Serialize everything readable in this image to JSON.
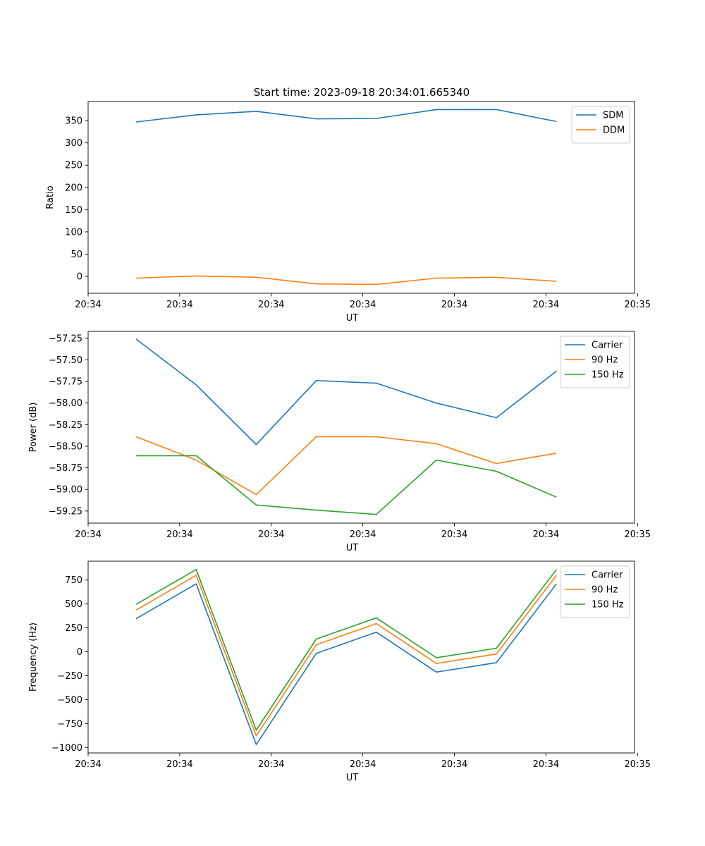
{
  "figure_title": "Start time: 2023-09-18 20:34:01.665340",
  "colors": {
    "c0": "#1f77b4",
    "c1": "#ff7f0e",
    "c2": "#2ca02c"
  },
  "chart_data": [
    {
      "type": "line",
      "title": "Start time: 2023-09-18 20:34:01.665340",
      "xlabel": "UT",
      "ylabel": "Ratio",
      "x": [
        1,
        2,
        3,
        4,
        5,
        6,
        7,
        8
      ],
      "xlim": [
        0.2,
        9.3
      ],
      "x_ticks": [
        {
          "pos": 0.2,
          "label": "20:34"
        },
        {
          "pos": 1.725,
          "label": "20:34"
        },
        {
          "pos": 3.25,
          "label": "20:34"
        },
        {
          "pos": 4.775,
          "label": "20:34"
        },
        {
          "pos": 6.3,
          "label": "20:34"
        },
        {
          "pos": 7.825,
          "label": "20:34"
        },
        {
          "pos": 9.35,
          "label": "20:35"
        }
      ],
      "ylim": [
        -38,
        393
      ],
      "y_ticks": [
        {
          "pos": 0,
          "label": "0"
        },
        {
          "pos": 50,
          "label": "50"
        },
        {
          "pos": 100,
          "label": "100"
        },
        {
          "pos": 150,
          "label": "150"
        },
        {
          "pos": 200,
          "label": "200"
        },
        {
          "pos": 250,
          "label": "250"
        },
        {
          "pos": 300,
          "label": "300"
        },
        {
          "pos": 350,
          "label": "350"
        }
      ],
      "legend": "top-right",
      "series": [
        {
          "name": "SDM",
          "color": "#1f77b4",
          "values": [
            347,
            363,
            371,
            354,
            355,
            375,
            375,
            348
          ]
        },
        {
          "name": "DDM",
          "color": "#ff7f0e",
          "values": [
            -4,
            1,
            -2,
            -17,
            -18,
            -4,
            -2,
            -11
          ]
        }
      ]
    },
    {
      "type": "line",
      "xlabel": "UT",
      "ylabel": "Power (dB)",
      "x": [
        1,
        2,
        3,
        4,
        5,
        6,
        7,
        8
      ],
      "xlim": [
        0.2,
        9.3
      ],
      "x_ticks": [
        {
          "pos": 0.2,
          "label": "20:34"
        },
        {
          "pos": 1.725,
          "label": "20:34"
        },
        {
          "pos": 3.25,
          "label": "20:34"
        },
        {
          "pos": 4.775,
          "label": "20:34"
        },
        {
          "pos": 6.3,
          "label": "20:34"
        },
        {
          "pos": 7.825,
          "label": "20:34"
        },
        {
          "pos": 9.35,
          "label": "20:35"
        }
      ],
      "ylim": [
        -59.39,
        -57.17
      ],
      "y_ticks": [
        {
          "pos": -59.25,
          "label": "−59.25"
        },
        {
          "pos": -59.0,
          "label": "−59.00"
        },
        {
          "pos": -58.75,
          "label": "−58.75"
        },
        {
          "pos": -58.5,
          "label": "−58.50"
        },
        {
          "pos": -58.25,
          "label": "−58.25"
        },
        {
          "pos": -58.0,
          "label": "−58.00"
        },
        {
          "pos": -57.75,
          "label": "−57.75"
        },
        {
          "pos": -57.5,
          "label": "−57.50"
        },
        {
          "pos": -57.25,
          "label": "−57.25"
        }
      ],
      "legend": "top-right",
      "series": [
        {
          "name": "Carrier",
          "color": "#1f77b4",
          "values": [
            -57.26,
            -57.79,
            -58.48,
            -57.74,
            -57.77,
            -58.0,
            -58.17,
            -57.63
          ]
        },
        {
          "name": "90 Hz",
          "color": "#ff7f0e",
          "values": [
            -58.39,
            -58.66,
            -59.06,
            -58.39,
            -58.39,
            -58.47,
            -58.7,
            -58.58
          ]
        },
        {
          "name": "150 Hz",
          "color": "#2ca02c",
          "values": [
            -58.61,
            -58.61,
            -59.18,
            -59.24,
            -59.29,
            -58.66,
            -58.79,
            -59.09
          ]
        }
      ]
    },
    {
      "type": "line",
      "xlabel": "UT",
      "ylabel": "Frequency (Hz)",
      "x": [
        1,
        2,
        3,
        4,
        5,
        6,
        7,
        8
      ],
      "xlim": [
        0.2,
        9.3
      ],
      "x_ticks": [
        {
          "pos": 0.2,
          "label": "20:34"
        },
        {
          "pos": 1.725,
          "label": "20:34"
        },
        {
          "pos": 3.25,
          "label": "20:34"
        },
        {
          "pos": 4.775,
          "label": "20:34"
        },
        {
          "pos": 6.3,
          "label": "20:34"
        },
        {
          "pos": 7.825,
          "label": "20:34"
        },
        {
          "pos": 9.35,
          "label": "20:35"
        }
      ],
      "ylim": [
        -1057,
        947
      ],
      "y_ticks": [
        {
          "pos": -1000,
          "label": "−1000"
        },
        {
          "pos": -750,
          "label": "−750"
        },
        {
          "pos": -500,
          "label": "−500"
        },
        {
          "pos": -250,
          "label": "−250"
        },
        {
          "pos": 0,
          "label": "0"
        },
        {
          "pos": 250,
          "label": "250"
        },
        {
          "pos": 500,
          "label": "500"
        },
        {
          "pos": 750,
          "label": "750"
        }
      ],
      "legend": "top-right",
      "series": [
        {
          "name": "Carrier",
          "color": "#1f77b4",
          "values": [
            346,
            710,
            -969,
            -17,
            205,
            -212,
            -113,
            710
          ]
        },
        {
          "name": "90 Hz",
          "color": "#ff7f0e",
          "values": [
            436,
            800,
            -879,
            73,
            295,
            -122,
            -23,
            800
          ]
        },
        {
          "name": "150 Hz",
          "color": "#2ca02c",
          "values": [
            496,
            860,
            -819,
            133,
            355,
            -62,
            37,
            860
          ]
        }
      ]
    }
  ]
}
